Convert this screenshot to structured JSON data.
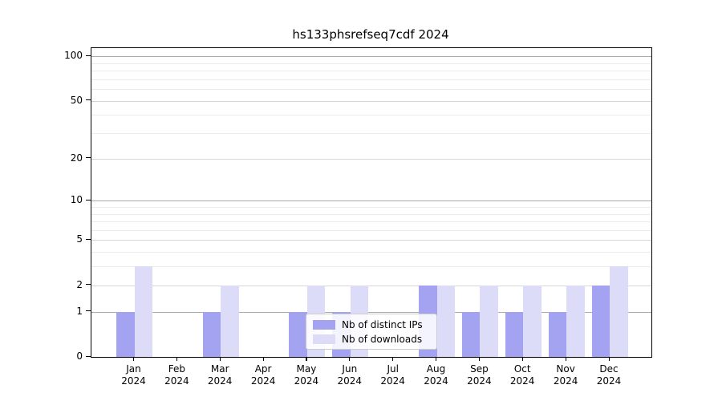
{
  "chart_data": {
    "type": "bar",
    "title": "hs133phsrefseq7cdf 2024",
    "categories": [
      "Jan 2024",
      "Feb 2024",
      "Mar 2024",
      "Apr 2024",
      "May 2024",
      "Jun 2024",
      "Jul 2024",
      "Aug 2024",
      "Sep 2024",
      "Oct 2024",
      "Nov 2024",
      "Dec 2024"
    ],
    "x_tick_months": [
      "Jan",
      "Feb",
      "Mar",
      "Apr",
      "May",
      "Jun",
      "Jul",
      "Aug",
      "Sep",
      "Oct",
      "Nov",
      "Dec"
    ],
    "x_tick_year": "2024",
    "series": [
      {
        "name": "Nb of distinct IPs",
        "color": "#a3a3f2",
        "values": [
          1,
          0,
          1,
          0,
          1,
          1,
          0,
          2,
          1,
          1,
          1,
          2
        ]
      },
      {
        "name": "Nb of downloads",
        "color": "#dcdcf9",
        "values": [
          3,
          0,
          2,
          0,
          2,
          2,
          0,
          2,
          2,
          2,
          2,
          3
        ]
      }
    ],
    "y_axis": {
      "scale": "log1p",
      "major_ticks": [
        0,
        1,
        2,
        5,
        10,
        20,
        50,
        100
      ],
      "decade_ticks": [
        1,
        10,
        100
      ],
      "minor_ticks": [
        3,
        4,
        6,
        7,
        8,
        9,
        30,
        40,
        60,
        70,
        80,
        90
      ],
      "tick_labels": [
        "0",
        "1",
        "2",
        "5",
        "10",
        "20",
        "50",
        "100"
      ],
      "ylim": [
        0,
        112
      ]
    },
    "legend": {
      "position": "inside-lower-center",
      "items": [
        "Nb of distinct IPs",
        "Nb of downloads"
      ]
    },
    "grid": true,
    "xlabel": "",
    "ylabel": ""
  },
  "colors": {
    "background": "#ffffff",
    "axis": "#000000",
    "grid_decade": "#aaaaaa",
    "grid_labeled": "#d6d6d6",
    "grid_minor": "#ececec",
    "series_ips": "#a3a3f2",
    "series_downloads": "#dcdcf9"
  }
}
